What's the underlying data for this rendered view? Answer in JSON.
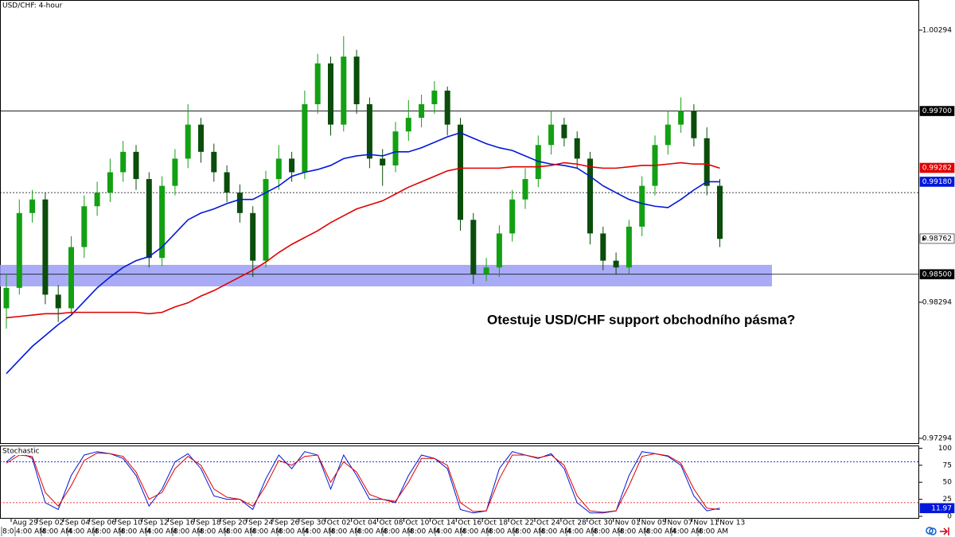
{
  "chart_data": [
    {
      "type": "candlestick",
      "title": "USD/CHF: 4-hour",
      "annotation": "Otestuje USD/CHF support obchodního pásma?",
      "open": [
        0.9825,
        0.984,
        0.9895,
        0.9905,
        0.9835,
        0.9825,
        0.987,
        0.99,
        0.991,
        0.9925,
        0.994,
        0.992,
        0.9862,
        0.9915,
        0.9935,
        0.996,
        0.994,
        0.9925,
        0.991,
        0.9895,
        0.986,
        0.992,
        0.9935,
        0.9925,
        0.9975,
        1.0005,
        0.996,
        1.001,
        0.9975,
        0.9935,
        0.993,
        0.9955,
        0.9965,
        0.9975,
        0.9985,
        0.996,
        0.989,
        0.985,
        0.9855,
        0.988,
        0.9905,
        0.992,
        0.9945,
        0.996,
        0.995,
        0.9935,
        0.988,
        0.986,
        0.9855,
        0.9885,
        0.9915,
        0.9945,
        0.996,
        0.997,
        0.995,
        0.9915
      ],
      "high": [
        0.985,
        0.9905,
        0.9912,
        0.991,
        0.9842,
        0.9878,
        0.9908,
        0.9918,
        0.9935,
        0.9948,
        0.9945,
        0.9925,
        0.9922,
        0.9942,
        0.9975,
        0.9965,
        0.9946,
        0.993,
        0.9916,
        0.99,
        0.9926,
        0.9945,
        0.994,
        0.9985,
        1.0012,
        1.001,
        1.0025,
        1.0015,
        0.998,
        0.9942,
        0.9962,
        0.9978,
        0.9982,
        0.9992,
        0.9988,
        0.9965,
        0.9895,
        0.9862,
        0.9886,
        0.9912,
        0.9928,
        0.9952,
        0.997,
        0.9965,
        0.9955,
        0.994,
        0.9885,
        0.9866,
        0.989,
        0.9922,
        0.9952,
        0.997,
        0.998,
        0.9975,
        0.9958,
        0.992
      ],
      "low": [
        0.981,
        0.9835,
        0.9888,
        0.9828,
        0.9815,
        0.982,
        0.9862,
        0.9893,
        0.9903,
        0.9918,
        0.9912,
        0.9855,
        0.9856,
        0.9908,
        0.9928,
        0.9932,
        0.9918,
        0.9903,
        0.9888,
        0.9848,
        0.9855,
        0.9912,
        0.9918,
        0.992,
        0.9968,
        0.9952,
        0.9955,
        0.9968,
        0.9928,
        0.9915,
        0.9925,
        0.9948,
        0.9958,
        0.9968,
        0.9952,
        0.9882,
        0.9843,
        0.9845,
        0.9848,
        0.9874,
        0.9898,
        0.9914,
        0.9938,
        0.9944,
        0.9928,
        0.9872,
        0.9853,
        0.985,
        0.985,
        0.9878,
        0.9908,
        0.9938,
        0.9954,
        0.9944,
        0.9908,
        0.987
      ],
      "close": [
        0.984,
        0.9895,
        0.9905,
        0.9835,
        0.9825,
        0.987,
        0.99,
        0.991,
        0.9925,
        0.994,
        0.992,
        0.9862,
        0.9915,
        0.9935,
        0.996,
        0.994,
        0.9925,
        0.991,
        0.9895,
        0.986,
        0.992,
        0.9935,
        0.9925,
        0.9975,
        1.0005,
        0.996,
        1.001,
        0.9975,
        0.9935,
        0.993,
        0.9955,
        0.9965,
        0.9975,
        0.9985,
        0.996,
        0.989,
        0.985,
        0.9855,
        0.988,
        0.9905,
        0.992,
        0.9945,
        0.996,
        0.995,
        0.9935,
        0.988,
        0.986,
        0.9855,
        0.9885,
        0.9915,
        0.9945,
        0.996,
        0.997,
        0.995,
        0.9915,
        0.9876
      ],
      "up_color": "#13a013",
      "down_color": "#0b4d0b",
      "series": [
        {
          "color": "#0018d8",
          "values": [
            0.9777,
            0.9787,
            0.9797,
            0.9805,
            0.9813,
            0.982,
            0.983,
            0.984,
            0.9848,
            0.9855,
            0.986,
            0.9863,
            0.987,
            0.988,
            0.989,
            0.9895,
            0.9898,
            0.9902,
            0.9905,
            0.9905,
            0.991,
            0.9915,
            0.9922,
            0.9925,
            0.9927,
            0.993,
            0.9935,
            0.9937,
            0.9938,
            0.9937,
            0.994,
            0.994,
            0.9943,
            0.9947,
            0.9951,
            0.9954,
            0.995,
            0.9946,
            0.9943,
            0.9941,
            0.9937,
            0.9933,
            0.9931,
            0.993,
            0.9928,
            0.9922,
            0.9915,
            0.991,
            0.9905,
            0.9902,
            0.99,
            0.9899,
            0.9905,
            0.9912,
            0.9918,
            0.9918
          ]
        },
        {
          "color": "#e00000",
          "values": [
            0.9818,
            0.9819,
            0.982,
            0.9821,
            0.9821,
            0.9822,
            0.9822,
            0.9822,
            0.9822,
            0.9822,
            0.9822,
            0.9821,
            0.9822,
            0.9826,
            0.9829,
            0.9834,
            0.9838,
            0.9843,
            0.9848,
            0.9853,
            0.9859,
            0.9866,
            0.9872,
            0.9877,
            0.9882,
            0.9888,
            0.9893,
            0.9898,
            0.9901,
            0.9904,
            0.9909,
            0.9914,
            0.9918,
            0.9922,
            0.9926,
            0.9928,
            0.9928,
            0.9928,
            0.9928,
            0.9929,
            0.9929,
            0.9929,
            0.993,
            0.9932,
            0.9931,
            0.9929,
            0.9928,
            0.9928,
            0.9929,
            0.993,
            0.993,
            0.9931,
            0.9932,
            0.9931,
            0.9931,
            0.9928
          ]
        }
      ],
      "ylim": [
        0.97253,
        1.00516
      ],
      "yticks": [
        1.00294,
        0.98294,
        0.97294
      ],
      "hlines": [
        {
          "value": 0.997,
          "style": "solid"
        },
        {
          "value": 0.991,
          "style": "dotted"
        },
        {
          "value": 0.985,
          "style": "solid"
        }
      ],
      "zone": [
        0.98411,
        0.98569
      ],
      "zone_color": "#9a9cf5",
      "price_markers": [
        {
          "value": 0.997,
          "label": "0.99700",
          "color": "#000000"
        },
        {
          "value": 0.99282,
          "color": "#e00000"
        },
        {
          "value": 0.9918,
          "label": "0.99180",
          "color": "#0018d8"
        },
        {
          "value": 0.98762,
          "color": "#ffffff"
        },
        {
          "value": 0.985,
          "label": "0.98500",
          "color": "#000000"
        }
      ]
    },
    {
      "type": "line",
      "title": "Stochastic",
      "series": [
        {
          "color": "#0018d8",
          "values": [
            80,
            95,
            85,
            20,
            10,
            60,
            90,
            95,
            92,
            85,
            60,
            15,
            40,
            80,
            92,
            70,
            30,
            25,
            25,
            10,
            55,
            90,
            70,
            95,
            90,
            40,
            90,
            60,
            25,
            25,
            20,
            60,
            90,
            85,
            70,
            10,
            5,
            8,
            70,
            95,
            90,
            85,
            92,
            70,
            20,
            5,
            5,
            8,
            60,
            95,
            92,
            88,
            75,
            30,
            8,
            11.97
          ]
        },
        {
          "color": "#e00000",
          "values": [
            78,
            90,
            88,
            35,
            15,
            45,
            82,
            93,
            92,
            88,
            65,
            25,
            35,
            70,
            88,
            75,
            40,
            28,
            25,
            15,
            45,
            82,
            75,
            88,
            90,
            50,
            80,
            65,
            32,
            25,
            22,
            50,
            85,
            85,
            75,
            20,
            7,
            8,
            55,
            90,
            90,
            86,
            90,
            75,
            30,
            8,
            6,
            8,
            45,
            88,
            92,
            89,
            78,
            40,
            12,
            10
          ]
        }
      ],
      "ylim": [
        -3.5,
        104
      ],
      "yticks": [
        100,
        75,
        50,
        25,
        0
      ],
      "levels": [
        80,
        20
      ],
      "price_markers": [
        {
          "value": 11.97,
          "color": "#0018d8"
        }
      ]
    }
  ],
  "time_axis": {
    "dates": [
      "Aug 29",
      "Sep 02",
      "Sep 04",
      "Sep 06",
      "Sep 10",
      "Sep 12",
      "Sep 16",
      "Sep 18",
      "Sep 20",
      "Sep 24",
      "Sep 26",
      "Sep 30",
      "Oct 02",
      "Oct 04",
      "Oct 08",
      "Oct 10",
      "Oct 14",
      "Oct 16",
      "Oct 18",
      "Oct 22",
      "Oct 24",
      "Oct 28",
      "Oct 30",
      "Nov 01",
      "Nov 05",
      "Nov 07",
      "Nov 11",
      "Nov 13"
    ],
    "times": [
      "8:0",
      "4:00 AM",
      "8:00 AM",
      "4:00 AM",
      "8:00 AM",
      "8:00 AM",
      "4:00 AM",
      "8:00 AM",
      "8:00 AM",
      "8:00 AM",
      "8:00 AM",
      "8:00 AM",
      "4:00 AM",
      "8:00 AM",
      "8:00 AM",
      "8:00 AM",
      "8:00 AM",
      "4:00 AM",
      "8:00 AM",
      "8:00 AM",
      "8:00 AM",
      "8:00 AM",
      "4:00 AM",
      "8:00 AM",
      "8:00 AM",
      "8:00 AM",
      "4:00 AM",
      "8:00 AM"
    ]
  }
}
